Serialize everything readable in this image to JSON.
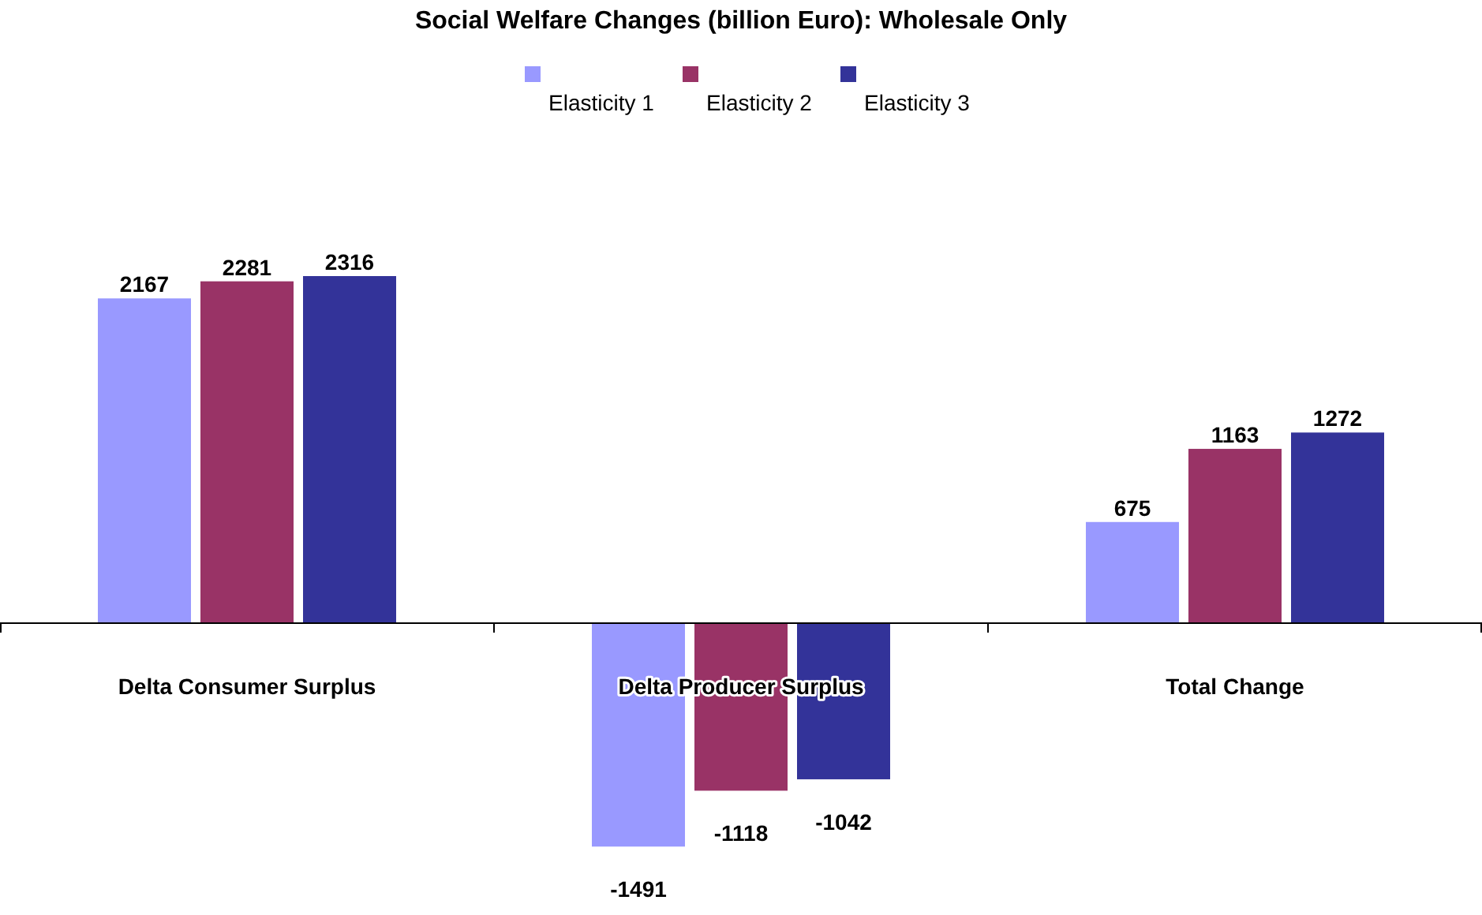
{
  "chart_data": {
    "type": "bar",
    "title": "Social Welfare Changes (billion Euro): Wholesale Only",
    "categories": [
      "Delta Consumer Surplus",
      "Delta Producer Surplus",
      "Total Change"
    ],
    "series": [
      {
        "name": "Elasticity 1",
        "color": "#9999ff",
        "values": [
          2167,
          -1491,
          675
        ]
      },
      {
        "name": "Elasticity 2",
        "color": "#993366",
        "values": [
          2281,
          -1118,
          1163
        ]
      },
      {
        "name": "Elasticity 3",
        "color": "#333399",
        "values": [
          2316,
          -1042,
          1272
        ]
      }
    ],
    "data_labels": true,
    "legend": "top"
  }
}
